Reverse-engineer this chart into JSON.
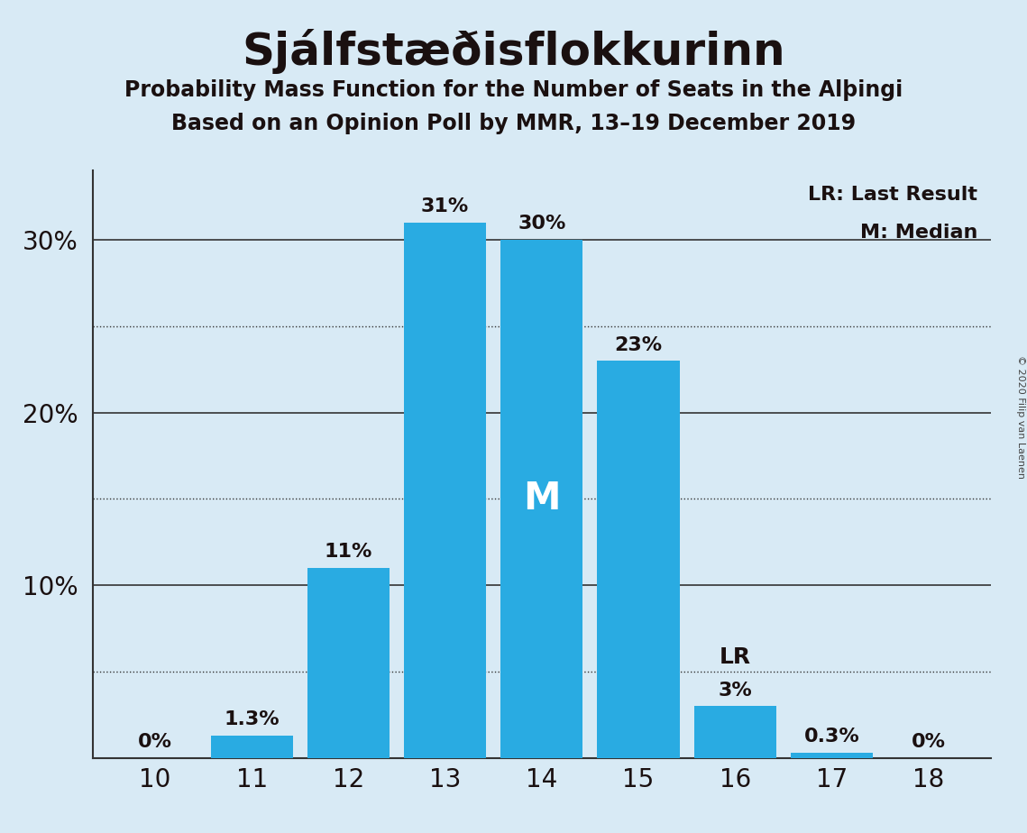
{
  "title": "Sjálfstæðisflokkurinn",
  "subtitle1": "Probability Mass Function for the Number of Seats in the Alþingi",
  "subtitle2": "Based on an Opinion Poll by MMR, 13–19 December 2019",
  "categories": [
    10,
    11,
    12,
    13,
    14,
    15,
    16,
    17,
    18
  ],
  "values": [
    0.0,
    1.3,
    11.0,
    31.0,
    30.0,
    23.0,
    3.0,
    0.3,
    0.0
  ],
  "bar_color": "#29abe2",
  "bg_color": "#d8eaf5",
  "title_color": "#1a1010",
  "text_color": "#1a1010",
  "bar_label_color_dark": "#1a1010",
  "bar_label_color_white": "#ffffff",
  "median_seat": 14,
  "lr_seat": 16,
  "ylim": [
    0,
    34
  ],
  "yticks_labeled": [
    10,
    20,
    30
  ],
  "yticks_dotted": [
    5,
    15,
    25
  ],
  "grid_color": "#333333",
  "legend_lr": "LR: Last Result",
  "legend_m": "M: Median",
  "copyright": "© 2020 Filip van Laenen",
  "bar_width": 0.85,
  "xlim": [
    9.35,
    18.65
  ]
}
